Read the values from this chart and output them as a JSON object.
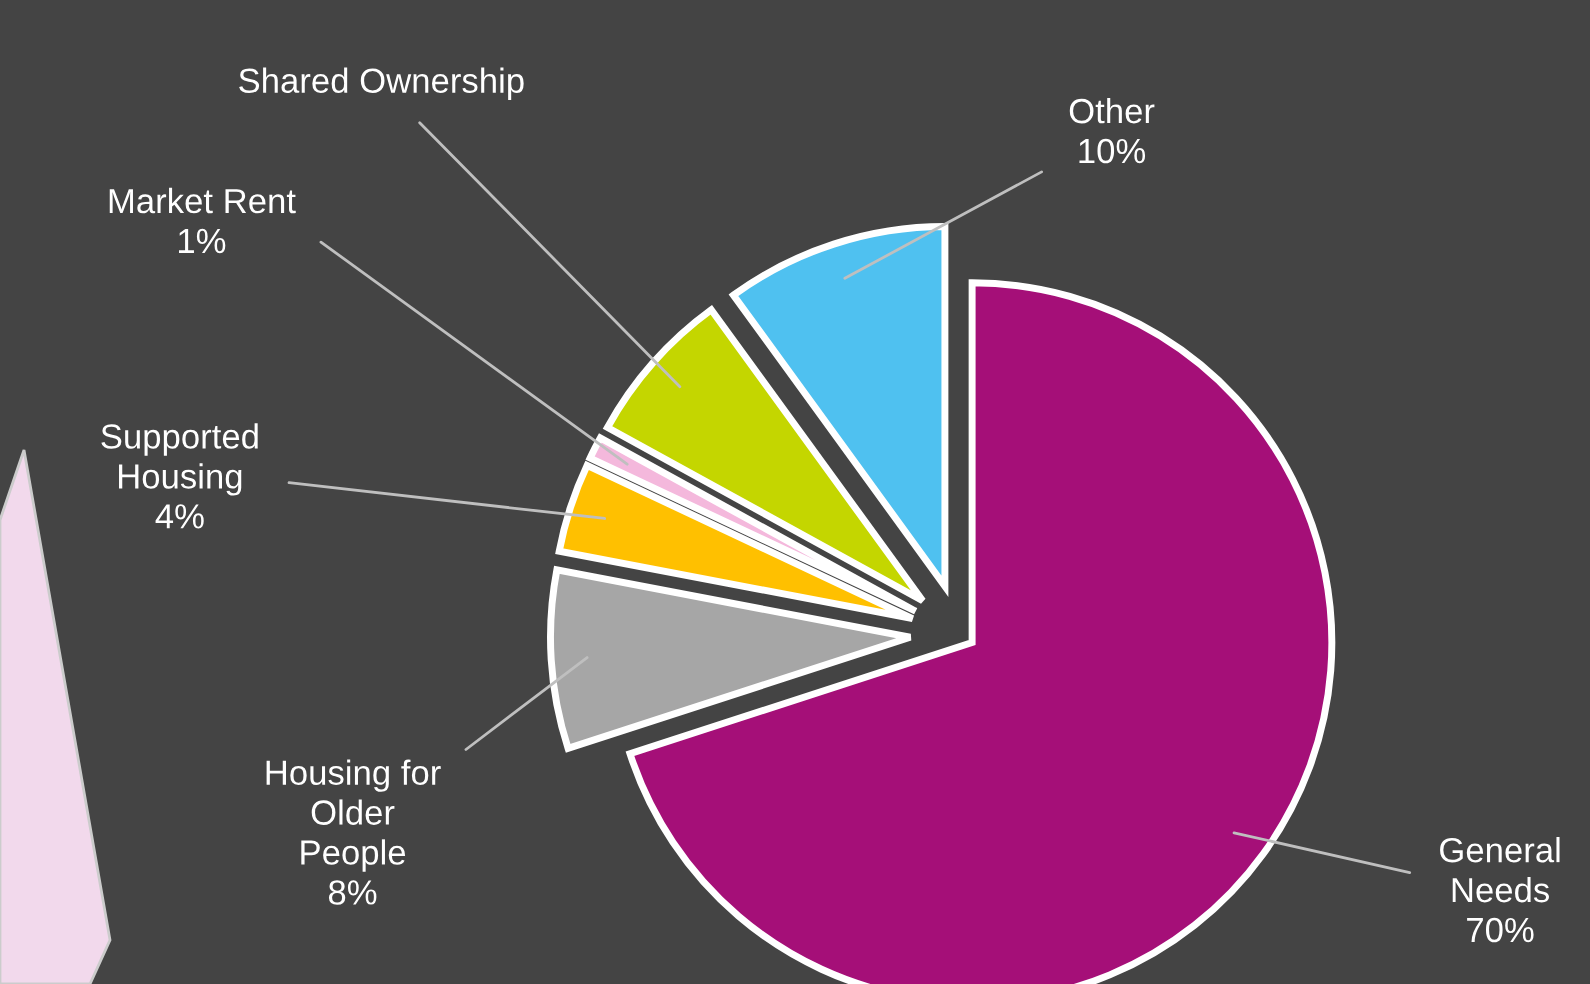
{
  "chart_data": {
    "type": "pie",
    "categories": [
      "General\nNeeds",
      "Housing for\nOlder\nPeople",
      "Supported\nHousing",
      "Market Rent",
      "Shared Ownership",
      "Other"
    ],
    "values": [
      70,
      8,
      4,
      1,
      7,
      10
    ],
    "value_labels": [
      "70%",
      "8%",
      "4%",
      "1%",
      null,
      "10%"
    ],
    "colors": [
      "#a50f78",
      "#a6a6a6",
      "#ffc000",
      "#f4b8dc",
      "#c4d600",
      "#4fc1f0"
    ],
    "legend": false
  }
}
